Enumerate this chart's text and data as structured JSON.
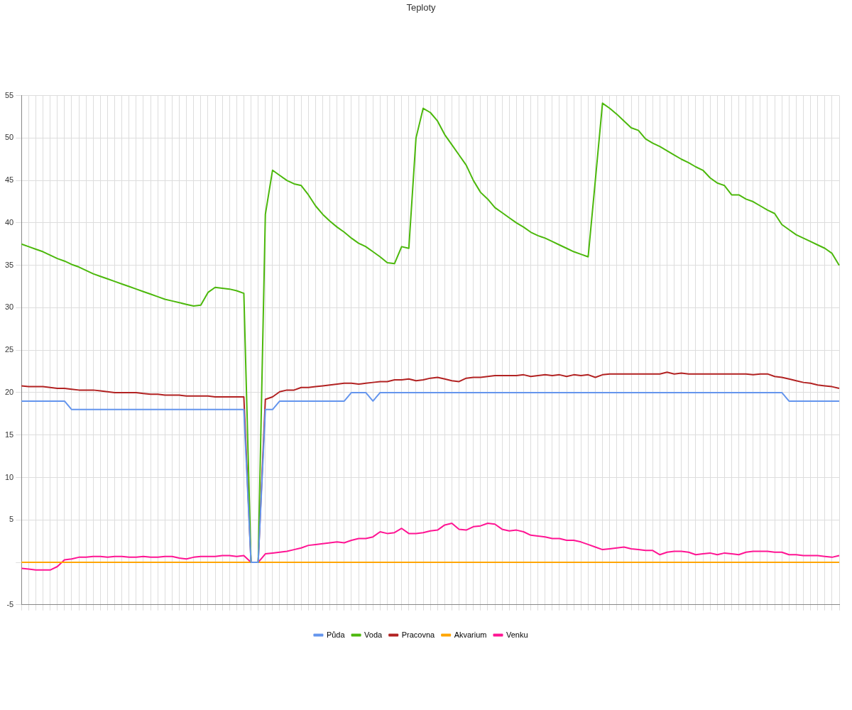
{
  "chart_data": {
    "type": "line",
    "title": "Teploty",
    "categories": [
      null,
      null,
      null,
      null,
      null,
      null,
      null,
      null,
      null,
      null,
      null,
      null,
      null,
      null,
      null,
      null,
      null,
      null,
      null,
      null,
      null,
      null,
      null,
      null,
      null,
      null,
      null,
      null,
      null,
      null,
      null,
      null,
      null,
      null,
      null,
      null,
      null,
      null,
      null,
      null,
      null,
      null,
      null,
      null,
      null,
      null,
      null,
      null,
      null,
      null,
      null,
      null,
      null,
      null,
      null,
      null,
      null,
      null,
      null,
      null,
      null,
      null,
      null,
      null,
      null,
      null,
      null,
      null,
      null,
      null,
      null,
      null,
      null,
      null,
      null,
      null,
      null,
      null,
      null,
      null,
      null,
      null,
      null,
      null,
      null,
      null,
      null,
      null,
      null,
      null,
      null,
      null,
      null,
      null,
      null,
      null,
      null,
      null,
      null,
      null,
      null,
      null,
      null,
      null,
      null,
      null,
      null,
      null,
      null,
      null,
      null,
      null,
      null,
      null,
      null
    ],
    "series": [
      {
        "name": "Půda",
        "color": "#6495ed",
        "values": [
          19,
          19,
          19,
          19,
          19,
          19,
          19,
          18,
          18,
          18,
          18,
          18,
          18,
          18,
          18,
          18,
          18,
          18,
          18,
          18,
          18,
          18,
          18,
          18,
          18,
          18,
          18,
          18,
          18,
          18,
          18,
          18,
          0,
          0,
          18,
          18,
          19,
          19,
          19,
          19,
          19,
          19,
          19,
          19,
          19,
          19,
          20,
          20,
          20,
          19,
          20,
          20,
          20,
          20,
          20,
          20,
          20,
          20,
          20,
          20,
          20,
          20,
          20,
          20,
          20,
          20,
          20,
          20,
          20,
          20,
          20,
          20,
          20,
          20,
          20,
          20,
          20,
          20,
          20,
          20,
          20,
          20,
          20,
          20,
          20,
          20,
          20,
          20,
          20,
          20,
          20,
          20,
          20,
          20,
          20,
          20,
          20,
          20,
          20,
          20,
          20,
          20,
          20,
          20,
          20,
          20,
          20,
          19,
          19,
          19,
          19,
          19,
          19,
          19,
          19
        ]
      },
      {
        "name": "Voda",
        "color": "#4cb80c",
        "values": [
          37.5,
          37.2,
          36.9,
          36.6,
          36.2,
          35.8,
          35.5,
          35.1,
          34.8,
          34.4,
          34.0,
          33.7,
          33.4,
          33.1,
          32.8,
          32.5,
          32.2,
          31.9,
          31.6,
          31.3,
          31.0,
          30.8,
          30.6,
          30.4,
          30.2,
          30.3,
          31.8,
          32.4,
          32.3,
          32.2,
          32.0,
          31.7,
          0,
          0,
          41,
          46.2,
          45.6,
          45.0,
          44.6,
          44.4,
          43.3,
          42.0,
          41.0,
          40.2,
          39.5,
          38.9,
          38.2,
          37.6,
          37.2,
          36.6,
          36.0,
          35.3,
          35.2,
          37.2,
          37.0,
          50.0,
          53.5,
          53.0,
          52.0,
          50.4,
          49.2,
          48.0,
          46.8,
          45.0,
          43.6,
          42.8,
          41.8,
          41.2,
          40.6,
          40.0,
          39.5,
          38.9,
          38.5,
          38.2,
          37.8,
          37.4,
          37.0,
          36.6,
          36.3,
          36.0,
          45.0,
          54.1,
          53.5,
          52.8,
          52.0,
          51.2,
          50.9,
          49.9,
          49.4,
          49.0,
          48.5,
          48.0,
          47.5,
          47.1,
          46.6,
          46.2,
          45.3,
          44.7,
          44.4,
          43.3,
          43.3,
          42.8,
          42.5,
          42.0,
          41.5,
          41.1,
          39.8,
          39.2,
          38.6,
          38.2,
          37.8,
          37.4,
          37.0,
          36.4,
          35.0
        ]
      },
      {
        "name": "Pracovna",
        "color": "#b22222",
        "values": [
          20.8,
          20.7,
          20.7,
          20.7,
          20.6,
          20.5,
          20.5,
          20.4,
          20.3,
          20.3,
          20.3,
          20.2,
          20.1,
          20.0,
          20.0,
          20.0,
          20.0,
          19.9,
          19.8,
          19.8,
          19.7,
          19.7,
          19.7,
          19.6,
          19.6,
          19.6,
          19.6,
          19.5,
          19.5,
          19.5,
          19.5,
          19.5,
          0,
          0,
          19.2,
          19.5,
          20.1,
          20.3,
          20.3,
          20.6,
          20.6,
          20.7,
          20.8,
          20.9,
          21.0,
          21.1,
          21.1,
          21.0,
          21.1,
          21.2,
          21.3,
          21.3,
          21.5,
          21.5,
          21.6,
          21.4,
          21.5,
          21.7,
          21.8,
          21.6,
          21.4,
          21.3,
          21.7,
          21.8,
          21.8,
          21.9,
          22.0,
          22.0,
          22.0,
          22.0,
          22.1,
          21.9,
          22.0,
          22.1,
          22.0,
          22.1,
          21.9,
          22.1,
          22.0,
          22.1,
          21.8,
          22.1,
          22.2,
          22.2,
          22.2,
          22.2,
          22.2,
          22.2,
          22.2,
          22.2,
          22.4,
          22.2,
          22.3,
          22.2,
          22.2,
          22.2,
          22.2,
          22.2,
          22.2,
          22.2,
          22.2,
          22.2,
          22.1,
          22.2,
          22.2,
          21.9,
          21.8,
          21.6,
          21.4,
          21.2,
          21.1,
          20.9,
          20.8,
          20.7,
          20.5
        ]
      },
      {
        "name": "Akvarium",
        "color": "#ffa500",
        "values": [
          0,
          0,
          0,
          0,
          0,
          0,
          0,
          0,
          0,
          0,
          0,
          0,
          0,
          0,
          0,
          0,
          0,
          0,
          0,
          0,
          0,
          0,
          0,
          0,
          0,
          0,
          0,
          0,
          0,
          0,
          0,
          0,
          0,
          0,
          0,
          0,
          0,
          0,
          0,
          0,
          0,
          0,
          0,
          0,
          0,
          0,
          0,
          0,
          0,
          0,
          0,
          0,
          0,
          0,
          0,
          0,
          0,
          0,
          0,
          0,
          0,
          0,
          0,
          0,
          0,
          0,
          0,
          0,
          0,
          0,
          0,
          0,
          0,
          0,
          0,
          0,
          0,
          0,
          0,
          0,
          0,
          0,
          0,
          0,
          0,
          0,
          0,
          0,
          0,
          0,
          0,
          0,
          0,
          0,
          0,
          0,
          0,
          0,
          0,
          0,
          0,
          0,
          0,
          0,
          0,
          0,
          0,
          0,
          0,
          0,
          0,
          0,
          0,
          0,
          0
        ]
      },
      {
        "name": "Venku",
        "color": "#ff1493",
        "values": [
          -0.7,
          -0.8,
          -0.9,
          -0.9,
          -0.9,
          -0.5,
          0.3,
          0.4,
          0.6,
          0.6,
          0.7,
          0.7,
          0.6,
          0.7,
          0.7,
          0.6,
          0.6,
          0.7,
          0.6,
          0.6,
          0.7,
          0.7,
          0.5,
          0.4,
          0.6,
          0.7,
          0.7,
          0.7,
          0.8,
          0.8,
          0.7,
          0.8,
          0,
          0,
          1.0,
          1.1,
          1.2,
          1.3,
          1.5,
          1.7,
          2.0,
          2.1,
          2.2,
          2.3,
          2.4,
          2.3,
          2.6,
          2.8,
          2.8,
          3.0,
          3.6,
          3.4,
          3.5,
          4.0,
          3.4,
          3.4,
          3.5,
          3.7,
          3.8,
          4.4,
          4.6,
          3.9,
          3.8,
          4.2,
          4.3,
          4.6,
          4.5,
          3.9,
          3.7,
          3.8,
          3.6,
          3.2,
          3.1,
          3.0,
          2.8,
          2.8,
          2.6,
          2.6,
          2.4,
          2.1,
          1.8,
          1.5,
          1.6,
          1.7,
          1.8,
          1.6,
          1.5,
          1.4,
          1.4,
          0.9,
          1.2,
          1.3,
          1.3,
          1.2,
          0.9,
          1.0,
          1.1,
          0.9,
          1.1,
          1.0,
          0.9,
          1.2,
          1.3,
          1.3,
          1.3,
          1.2,
          1.2,
          0.9,
          0.9,
          0.8,
          0.8,
          0.8,
          0.7,
          0.6,
          0.8
        ]
      }
    ],
    "ylim": [
      -5,
      55
    ],
    "yticks": [
      -5,
      {
        "value": 0,
        "label": null
      },
      5,
      10,
      15,
      20,
      25,
      30,
      35,
      40,
      45,
      50,
      55
    ],
    "grid": true,
    "legend": "bottom",
    "marker": "none",
    "line_style": "solid"
  }
}
